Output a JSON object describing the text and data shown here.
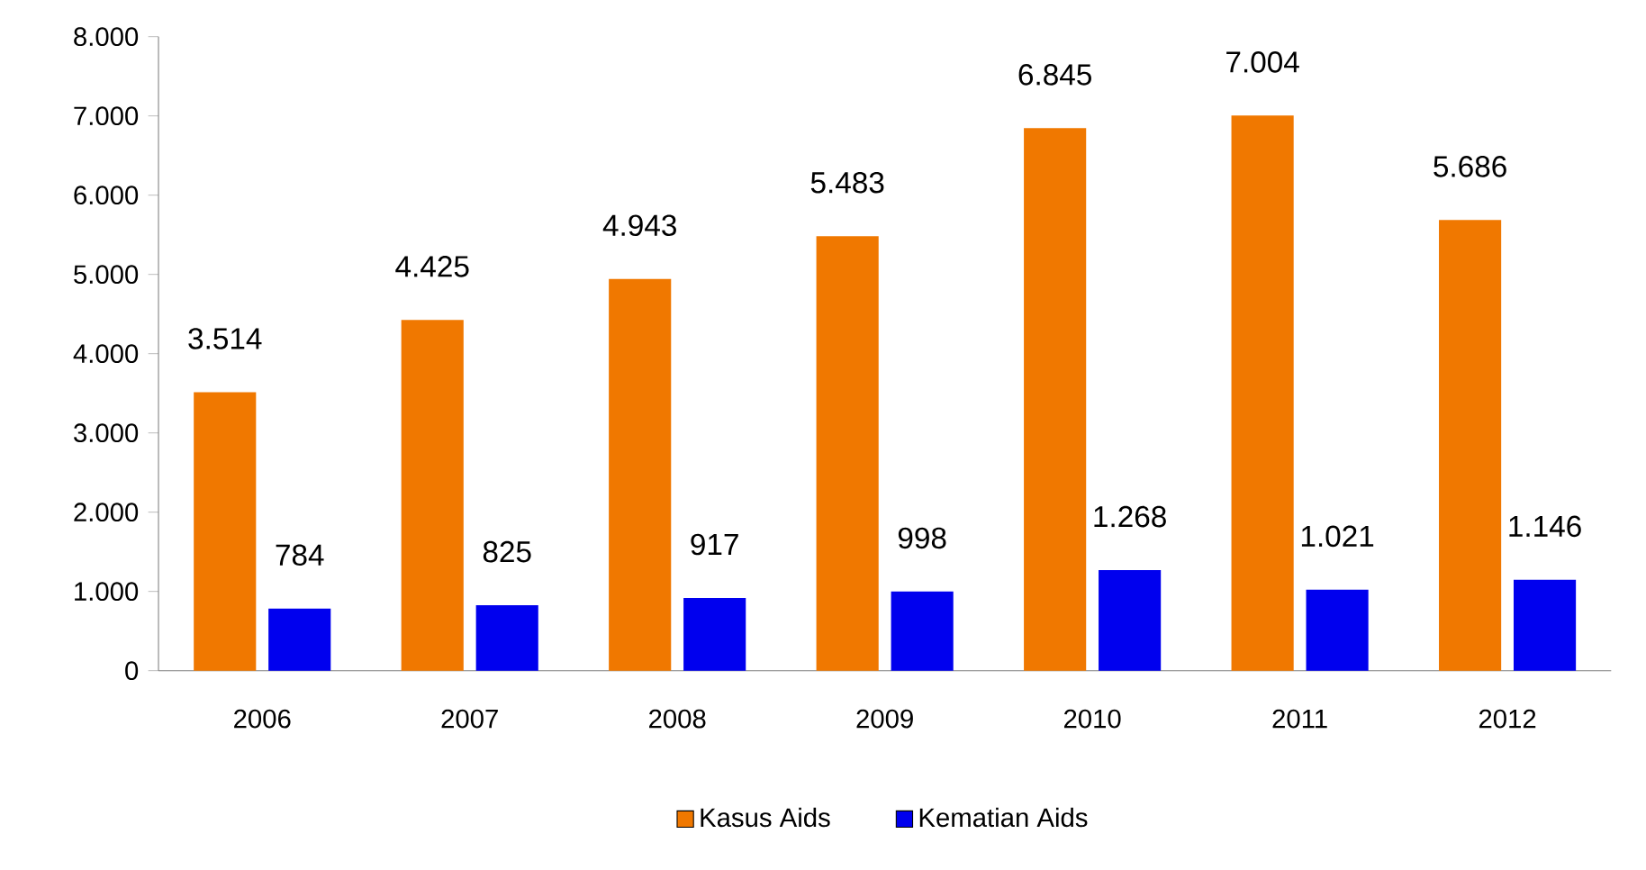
{
  "chart_data": {
    "type": "bar",
    "categories": [
      "2006",
      "2007",
      "2008",
      "2009",
      "2010",
      "2011",
      "2012"
    ],
    "series": [
      {
        "name": "Kasus Aids",
        "color": "#f07800",
        "values": [
          3514,
          4425,
          4943,
          5483,
          6845,
          7004,
          5686
        ],
        "value_labels": [
          "3.514",
          "4.425",
          "4.943",
          "5.483",
          "6.845",
          "7.004",
          "5.686"
        ]
      },
      {
        "name": "Kematian Aids",
        "color": "#0000ee",
        "values": [
          784,
          825,
          917,
          998,
          1268,
          1021,
          1146
        ],
        "value_labels": [
          "784",
          "825",
          "917",
          "998",
          "1.268",
          "1.021",
          "1.146"
        ]
      }
    ],
    "ylim": [
      0,
      8000
    ],
    "yticks": [
      0,
      {
        "value": 1000,
        "label": "1.000"
      },
      {
        "value": 2000,
        "label": "2.000"
      },
      {
        "value": 3000,
        "label": "3.000"
      },
      {
        "value": 4000,
        "label": "4.000"
      },
      {
        "value": 5000,
        "label": "5.000"
      },
      {
        "value": 6000,
        "label": "6.000"
      },
      {
        "value": 7000,
        "label": "7.000"
      },
      {
        "value": 8000,
        "label": "8.000"
      }
    ],
    "grid": false,
    "legend": "bottom"
  }
}
